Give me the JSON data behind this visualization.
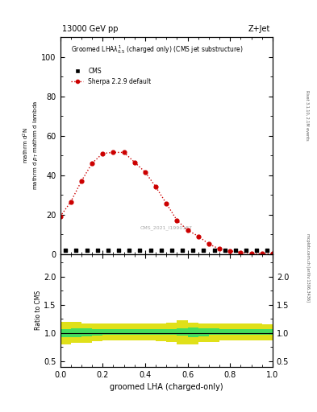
{
  "title_top": "13000 GeV pp",
  "title_right": "Z+Jet",
  "plot_title": "Groomed LHA$\\lambda^{1}_{0.5}$ (charged only) (CMS jet substructure)",
  "xlabel": "groomed LHA (charged-only)",
  "ylabel_main": "mathrm d$^2$N\nmathrm d $p_\\mathrm{T}$ mathrm d lambda",
  "ylabel_ratio": "Ratio to CMS",
  "right_label_top": "Rivet 3.1.10, 2.1M events",
  "right_label_bot": "mcplots.cern.ch [arXiv:1306.3436]",
  "watermark": "CMS_2021_I1990187",
  "cms_label": "CMS",
  "sherpa_label": "Sherpa 2.2.9 default",
  "sherpa_x": [
    0.0,
    0.05,
    0.1,
    0.15,
    0.2,
    0.25,
    0.3,
    0.35,
    0.4,
    0.45,
    0.5,
    0.55,
    0.6,
    0.65,
    0.7,
    0.75,
    0.8,
    0.85,
    0.9,
    0.95,
    1.0
  ],
  "sherpa_y": [
    19.0,
    26.5,
    37.0,
    46.0,
    51.0,
    51.5,
    51.5,
    46.5,
    41.5,
    34.0,
    25.5,
    17.0,
    12.0,
    9.0,
    5.0,
    2.5,
    1.5,
    0.8,
    0.3,
    0.1,
    0.05
  ],
  "cms_x": [
    0.025,
    0.075,
    0.125,
    0.175,
    0.225,
    0.275,
    0.325,
    0.375,
    0.425,
    0.475,
    0.525,
    0.575,
    0.625,
    0.675,
    0.725,
    0.775,
    0.825,
    0.875,
    0.925,
    0.975
  ],
  "cms_y": [
    2.0,
    2.0,
    2.0,
    2.0,
    2.0,
    2.0,
    2.0,
    2.0,
    2.0,
    2.0,
    2.0,
    2.0,
    2.0,
    2.0,
    2.0,
    2.0,
    2.0,
    2.0,
    2.0,
    2.0
  ],
  "ratio_x_edges": [
    0.0,
    0.05,
    0.1,
    0.15,
    0.2,
    0.25,
    0.3,
    0.35,
    0.4,
    0.45,
    0.5,
    0.55,
    0.6,
    0.65,
    0.7,
    0.75,
    0.8,
    0.85,
    0.9,
    0.95,
    1.0
  ],
  "ratio_green_lo": [
    0.93,
    0.93,
    0.94,
    0.95,
    0.96,
    0.96,
    0.96,
    0.96,
    0.96,
    0.96,
    0.96,
    0.95,
    0.93,
    0.94,
    0.96,
    0.96,
    0.97,
    0.97,
    0.97,
    0.97
  ],
  "ratio_green_hi": [
    1.07,
    1.08,
    1.08,
    1.07,
    1.07,
    1.07,
    1.07,
    1.07,
    1.07,
    1.07,
    1.07,
    1.08,
    1.1,
    1.08,
    1.08,
    1.07,
    1.07,
    1.07,
    1.07,
    1.07
  ],
  "ratio_yellow_lo": [
    0.8,
    0.82,
    0.83,
    0.85,
    0.86,
    0.86,
    0.86,
    0.86,
    0.86,
    0.85,
    0.84,
    0.8,
    0.8,
    0.84,
    0.84,
    0.86,
    0.86,
    0.86,
    0.86,
    0.87
  ],
  "ratio_yellow_hi": [
    1.2,
    1.19,
    1.17,
    1.16,
    1.16,
    1.16,
    1.16,
    1.16,
    1.16,
    1.16,
    1.18,
    1.22,
    1.18,
    1.16,
    1.16,
    1.16,
    1.16,
    1.16,
    1.16,
    1.15
  ],
  "ylim_main": [
    0,
    110
  ],
  "ylim_ratio": [
    0.4,
    2.4
  ],
  "yticks_main": [
    0,
    20,
    40,
    60,
    80,
    100
  ],
  "yticks_ratio": [
    0.5,
    1.0,
    1.5,
    2.0
  ],
  "color_sherpa": "#cc0000",
  "color_cms": "#000000",
  "color_green": "#33dd66",
  "color_yellow": "#dddd00",
  "bg_color": "#ffffff"
}
